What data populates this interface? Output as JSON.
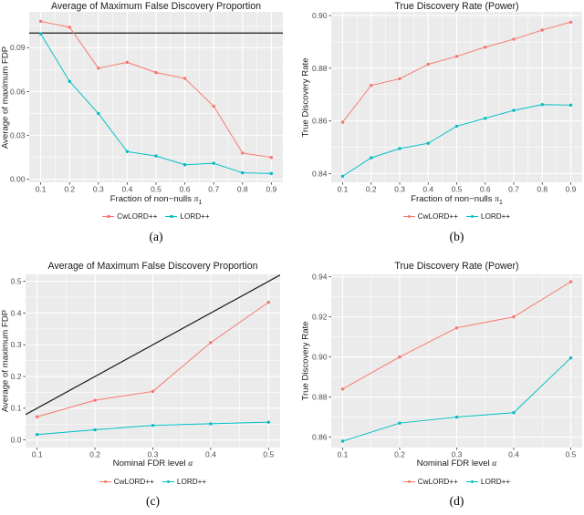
{
  "palette": {
    "red": "#F8766D",
    "teal": "#00BFC4",
    "panel_bg": "#EBEBEB",
    "grid": "#FFFFFF",
    "tick_text": "#4D4D4D",
    "tick_mark": "#333333",
    "title_text": "#1A1A1A",
    "reference_line": "#1A1A1A"
  },
  "chart_data": [
    {
      "type": "line",
      "title": "Average of Maximum False Discovery Proportion",
      "caption": "(a)",
      "ylabel": "Average of maximum FDP",
      "xlabel": {
        "text": "Fraction of non−nulls ",
        "math": "π",
        "sub": "1"
      },
      "x": [
        0.1,
        0.2,
        0.3,
        0.4,
        0.5,
        0.6,
        0.7,
        0.8,
        0.9
      ],
      "x_tick_labels": [
        "0.1",
        "0.2",
        "0.3",
        "0.4",
        "0.5",
        "0.6",
        "0.7",
        "0.8",
        "0.9"
      ],
      "y_tick_values": [
        0.0,
        0.03,
        0.06,
        0.09
      ],
      "y_tick_labels": [
        "0.00",
        "0.03",
        "0.06",
        "0.09"
      ],
      "xlim": [
        0.06,
        0.94
      ],
      "ylim": [
        -0.002,
        0.1145
      ],
      "grid": true,
      "legend_position": "bottom",
      "ref_line": {
        "type": "hline",
        "y": 0.1
      },
      "series": [
        {
          "name": "CwLORD++",
          "color": "#F8766D",
          "values": [
            0.108,
            0.104,
            0.076,
            0.08,
            0.073,
            0.069,
            0.05,
            0.018,
            0.015
          ]
        },
        {
          "name": "LORD++",
          "color": "#00BFC4",
          "values": [
            0.0995,
            0.067,
            0.045,
            0.019,
            0.016,
            0.01,
            0.011,
            0.0045,
            0.004
          ]
        }
      ]
    },
    {
      "type": "line",
      "title": "True Discovery Rate (Power)",
      "caption": "(b)",
      "ylabel": "True Discovery Rate",
      "xlabel": {
        "text": "Fraction of non−nulls ",
        "math": "π",
        "sub": "1"
      },
      "x": [
        0.1,
        0.2,
        0.3,
        0.4,
        0.5,
        0.6,
        0.7,
        0.8,
        0.9
      ],
      "x_tick_labels": [
        "0.1",
        "0.2",
        "0.3",
        "0.4",
        "0.5",
        "0.6",
        "0.7",
        "0.8",
        "0.9"
      ],
      "y_tick_values": [
        0.84,
        0.86,
        0.88,
        0.9
      ],
      "y_tick_labels": [
        "0.84",
        "0.86",
        "0.88",
        "0.90"
      ],
      "xlim": [
        0.06,
        0.94
      ],
      "ylim": [
        0.8367,
        0.9014
      ],
      "grid": true,
      "legend_position": "bottom",
      "ref_line": null,
      "series": [
        {
          "name": "CwLORD++",
          "color": "#F8766D",
          "values": [
            0.8595,
            0.8735,
            0.876,
            0.8815,
            0.8845,
            0.888,
            0.891,
            0.8945,
            0.8975
          ]
        },
        {
          "name": "LORD++",
          "color": "#00BFC4",
          "values": [
            0.839,
            0.846,
            0.8495,
            0.8515,
            0.858,
            0.861,
            0.864,
            0.8662,
            0.866
          ]
        }
      ]
    },
    {
      "type": "line",
      "title": "Average of Maximum False Discovery Proportion",
      "caption": "(c)",
      "ylabel": "Average of maximum FDP",
      "xlabel": {
        "text": "Nominal FDR level ",
        "math": "α",
        "sub": ""
      },
      "x": [
        0.1,
        0.2,
        0.3,
        0.4,
        0.5
      ],
      "x_tick_labels": [
        "0.1",
        "0.2",
        "0.3",
        "0.4",
        "0.5"
      ],
      "y_tick_values": [
        0.0,
        0.1,
        0.2,
        0.3,
        0.4,
        0.5
      ],
      "y_tick_labels": [
        "0.0",
        "0.1",
        "0.2",
        "0.3",
        "0.4",
        "0.5"
      ],
      "xlim": [
        0.08,
        0.52
      ],
      "ylim": [
        -0.024,
        0.522
      ],
      "grid": true,
      "legend_position": "bottom",
      "ref_line": {
        "type": "abline",
        "slope": 1,
        "intercept": 0
      },
      "series": [
        {
          "name": "CwLORD++",
          "color": "#F8766D",
          "values": [
            0.073,
            0.125,
            0.153,
            0.307,
            0.434
          ]
        },
        {
          "name": "LORD++",
          "color": "#00BFC4",
          "values": [
            0.017,
            0.032,
            0.046,
            0.051,
            0.056
          ]
        }
      ]
    },
    {
      "type": "line",
      "title": "True Discovery Rate (Power)",
      "caption": "(d)",
      "ylabel": "True Discovery Rate",
      "xlabel": {
        "text": "Nominal FDR level ",
        "math": "α",
        "sub": ""
      },
      "x": [
        0.1,
        0.2,
        0.3,
        0.4,
        0.5
      ],
      "x_tick_labels": [
        "0.1",
        "0.2",
        "0.3",
        "0.4",
        "0.5"
      ],
      "y_tick_values": [
        0.86,
        0.88,
        0.9,
        0.92,
        0.94
      ],
      "y_tick_labels": [
        "0.86",
        "0.88",
        "0.90",
        "0.92",
        "0.94"
      ],
      "xlim": [
        0.08,
        0.52
      ],
      "ylim": [
        0.8548,
        0.9412
      ],
      "grid": true,
      "legend_position": "bottom",
      "ref_line": null,
      "series": [
        {
          "name": "CwLORD++",
          "color": "#F8766D",
          "values": [
            0.884,
            0.9,
            0.9145,
            0.92,
            0.9375
          ]
        },
        {
          "name": "LORD++",
          "color": "#00BFC4",
          "values": [
            0.858,
            0.867,
            0.87,
            0.8722,
            0.8995
          ]
        }
      ]
    }
  ]
}
